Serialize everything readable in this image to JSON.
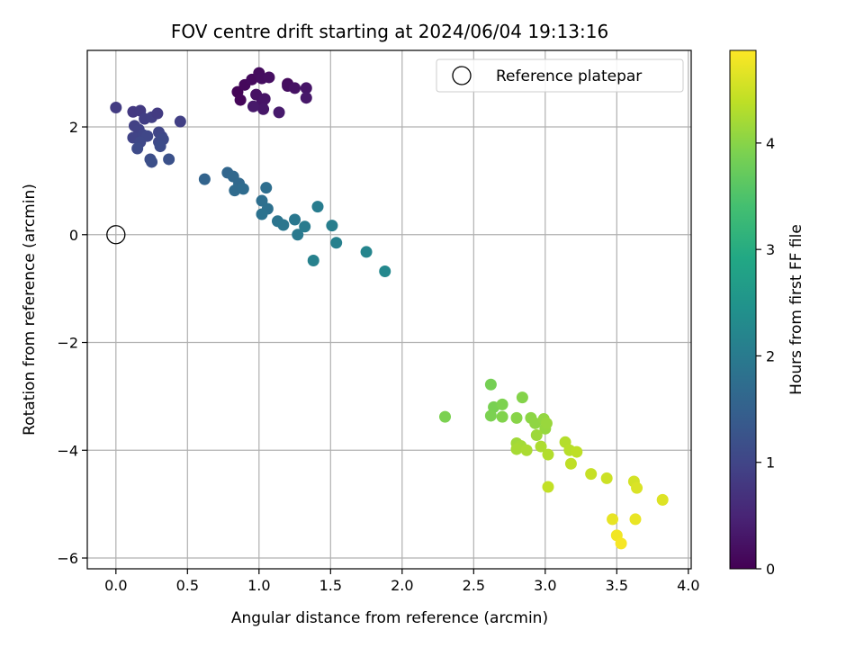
{
  "chart_data": {
    "type": "scatter",
    "title": "FOV centre drift starting at 2024/06/04 19:13:16",
    "xlabel": "Angular distance from reference (arcmin)",
    "ylabel": "Rotation from reference (arcmin)",
    "xlim": [
      -0.2,
      4.02
    ],
    "ylim": [
      -6.2,
      3.42
    ],
    "xticks": [
      0.0,
      0.5,
      1.0,
      1.5,
      2.0,
      2.5,
      3.0,
      3.5,
      4.0
    ],
    "xtick_labels": [
      "0.0",
      "0.5",
      "1.0",
      "1.5",
      "2.0",
      "2.5",
      "3.0",
      "3.5",
      "4.0"
    ],
    "yticks": [
      -6,
      -4,
      -2,
      0,
      2
    ],
    "ytick_labels": [
      "−6",
      "−4",
      "−2",
      "0",
      "2"
    ],
    "grid": true,
    "colormap": "viridis",
    "colorbar": {
      "label": "Hours from first FF file",
      "range": [
        0,
        4.87
      ],
      "ticks": [
        0,
        1,
        2,
        3,
        4
      ],
      "tick_labels": [
        "0",
        "1",
        "2",
        "3",
        "4"
      ]
    },
    "legend": {
      "position": "top-right",
      "entries": [
        "Reference platepar"
      ]
    },
    "reference_point": {
      "x": 0.0,
      "y": 0.0
    },
    "points": [
      {
        "x": 0.85,
        "y": 2.65,
        "c": 0.05
      },
      {
        "x": 0.87,
        "y": 2.5,
        "c": 0.07
      },
      {
        "x": 0.9,
        "y": 2.78,
        "c": 0.1
      },
      {
        "x": 0.95,
        "y": 2.88,
        "c": 0.13
      },
      {
        "x": 1.0,
        "y": 3.0,
        "c": 0.15
      },
      {
        "x": 1.02,
        "y": 2.9,
        "c": 0.17
      },
      {
        "x": 1.07,
        "y": 2.92,
        "c": 0.2
      },
      {
        "x": 0.98,
        "y": 2.6,
        "c": 0.22
      },
      {
        "x": 1.02,
        "y": 2.45,
        "c": 0.25
      },
      {
        "x": 1.04,
        "y": 2.52,
        "c": 0.27
      },
      {
        "x": 1.03,
        "y": 2.33,
        "c": 0.3
      },
      {
        "x": 0.96,
        "y": 2.38,
        "c": 0.33
      },
      {
        "x": 1.14,
        "y": 2.27,
        "c": 0.35
      },
      {
        "x": 1.2,
        "y": 2.8,
        "c": 0.12
      },
      {
        "x": 1.2,
        "y": 2.76,
        "c": 0.18
      },
      {
        "x": 1.25,
        "y": 2.72,
        "c": 0.23
      },
      {
        "x": 1.33,
        "y": 2.72,
        "c": 0.28
      },
      {
        "x": 1.33,
        "y": 2.54,
        "c": 0.32
      },
      {
        "x": 0.0,
        "y": 2.36,
        "c": 0.85
      },
      {
        "x": 0.12,
        "y": 2.28,
        "c": 0.8
      },
      {
        "x": 0.17,
        "y": 2.3,
        "c": 0.82
      },
      {
        "x": 0.2,
        "y": 2.15,
        "c": 0.88
      },
      {
        "x": 0.25,
        "y": 2.18,
        "c": 0.9
      },
      {
        "x": 0.29,
        "y": 2.25,
        "c": 0.83
      },
      {
        "x": 0.13,
        "y": 2.02,
        "c": 0.93
      },
      {
        "x": 0.16,
        "y": 1.95,
        "c": 0.95
      },
      {
        "x": 0.12,
        "y": 1.8,
        "c": 0.97
      },
      {
        "x": 0.19,
        "y": 1.85,
        "c": 1.0
      },
      {
        "x": 0.22,
        "y": 1.83,
        "c": 1.02
      },
      {
        "x": 0.17,
        "y": 1.72,
        "c": 1.05
      },
      {
        "x": 0.3,
        "y": 1.9,
        "c": 1.0
      },
      {
        "x": 0.32,
        "y": 1.82,
        "c": 1.03
      },
      {
        "x": 0.3,
        "y": 1.72,
        "c": 1.07
      },
      {
        "x": 0.33,
        "y": 1.77,
        "c": 1.09
      },
      {
        "x": 0.15,
        "y": 1.6,
        "c": 1.1
      },
      {
        "x": 0.31,
        "y": 1.64,
        "c": 1.12
      },
      {
        "x": 0.24,
        "y": 1.4,
        "c": 1.15
      },
      {
        "x": 0.25,
        "y": 1.35,
        "c": 1.17
      },
      {
        "x": 0.37,
        "y": 1.4,
        "c": 1.2
      },
      {
        "x": 0.45,
        "y": 2.1,
        "c": 0.92
      },
      {
        "x": 0.62,
        "y": 1.03,
        "c": 1.55
      },
      {
        "x": 0.78,
        "y": 1.15,
        "c": 1.6
      },
      {
        "x": 0.82,
        "y": 1.08,
        "c": 1.63
      },
      {
        "x": 0.86,
        "y": 0.95,
        "c": 1.66
      },
      {
        "x": 0.83,
        "y": 0.82,
        "c": 1.7
      },
      {
        "x": 0.89,
        "y": 0.85,
        "c": 1.72
      },
      {
        "x": 1.05,
        "y": 0.87,
        "c": 1.75
      },
      {
        "x": 1.02,
        "y": 0.63,
        "c": 1.78
      },
      {
        "x": 1.06,
        "y": 0.48,
        "c": 1.8
      },
      {
        "x": 1.02,
        "y": 0.38,
        "c": 1.84
      },
      {
        "x": 1.13,
        "y": 0.25,
        "c": 1.87
      },
      {
        "x": 1.17,
        "y": 0.18,
        "c": 1.9
      },
      {
        "x": 1.25,
        "y": 0.28,
        "c": 1.93
      },
      {
        "x": 1.27,
        "y": 0.0,
        "c": 1.96
      },
      {
        "x": 1.32,
        "y": 0.15,
        "c": 2.0
      },
      {
        "x": 1.41,
        "y": 0.52,
        "c": 2.03
      },
      {
        "x": 1.51,
        "y": 0.17,
        "c": 2.07
      },
      {
        "x": 1.54,
        "y": -0.15,
        "c": 2.1
      },
      {
        "x": 1.38,
        "y": -0.48,
        "c": 2.13
      },
      {
        "x": 1.75,
        "y": -0.32,
        "c": 2.2
      },
      {
        "x": 1.88,
        "y": -0.68,
        "c": 2.25
      },
      {
        "x": 2.3,
        "y": -3.38,
        "c": 3.9
      },
      {
        "x": 2.62,
        "y": -2.78,
        "c": 3.85
      },
      {
        "x": 2.64,
        "y": -3.2,
        "c": 3.88
      },
      {
        "x": 2.62,
        "y": -3.36,
        "c": 3.9
      },
      {
        "x": 2.7,
        "y": -3.15,
        "c": 3.92
      },
      {
        "x": 2.7,
        "y": -3.38,
        "c": 3.95
      },
      {
        "x": 2.84,
        "y": -3.02,
        "c": 3.97
      },
      {
        "x": 2.8,
        "y": -3.4,
        "c": 4.0
      },
      {
        "x": 2.9,
        "y": -3.4,
        "c": 4.03
      },
      {
        "x": 2.93,
        "y": -3.5,
        "c": 4.05
      },
      {
        "x": 2.99,
        "y": -3.42,
        "c": 4.08
      },
      {
        "x": 3.0,
        "y": -3.6,
        "c": 4.1
      },
      {
        "x": 3.01,
        "y": -3.5,
        "c": 4.12
      },
      {
        "x": 2.94,
        "y": -3.72,
        "c": 4.15
      },
      {
        "x": 2.8,
        "y": -3.87,
        "c": 4.17
      },
      {
        "x": 2.83,
        "y": -3.92,
        "c": 4.2
      },
      {
        "x": 2.8,
        "y": -3.98,
        "c": 4.22
      },
      {
        "x": 2.87,
        "y": -4.0,
        "c": 4.25
      },
      {
        "x": 2.97,
        "y": -3.93,
        "c": 4.27
      },
      {
        "x": 3.02,
        "y": -4.08,
        "c": 4.3
      },
      {
        "x": 3.14,
        "y": -3.85,
        "c": 4.32
      },
      {
        "x": 3.17,
        "y": -4.0,
        "c": 4.35
      },
      {
        "x": 3.22,
        "y": -4.03,
        "c": 4.38
      },
      {
        "x": 3.18,
        "y": -4.25,
        "c": 4.4
      },
      {
        "x": 3.02,
        "y": -4.68,
        "c": 4.42
      },
      {
        "x": 3.32,
        "y": -4.44,
        "c": 4.45
      },
      {
        "x": 3.43,
        "y": -4.52,
        "c": 4.5
      },
      {
        "x": 3.62,
        "y": -4.58,
        "c": 4.55
      },
      {
        "x": 3.64,
        "y": -4.7,
        "c": 4.6
      },
      {
        "x": 3.82,
        "y": -4.92,
        "c": 4.63
      },
      {
        "x": 3.47,
        "y": -5.28,
        "c": 4.7
      },
      {
        "x": 3.63,
        "y": -5.28,
        "c": 4.72
      },
      {
        "x": 3.5,
        "y": -5.58,
        "c": 4.78
      },
      {
        "x": 3.53,
        "y": -5.73,
        "c": 4.82
      }
    ]
  }
}
